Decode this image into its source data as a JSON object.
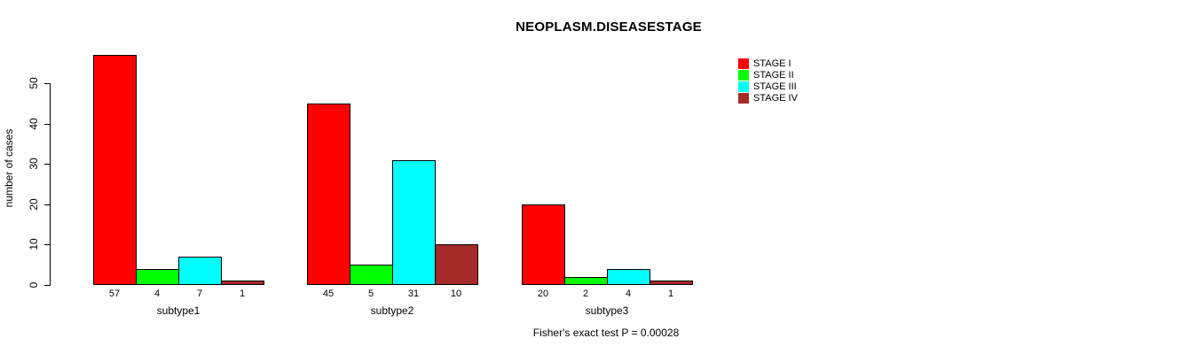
{
  "chart_data": {
    "type": "bar",
    "title": "NEOPLASM.DISEASESTAGE",
    "xlabel": "",
    "ylabel": "number of cases",
    "categories": [
      "subtype1",
      "subtype2",
      "subtype3"
    ],
    "series": [
      {
        "name": "STAGE I",
        "color": "#FF0000",
        "values": [
          57,
          45,
          20
        ]
      },
      {
        "name": "STAGE II",
        "color": "#00FF00",
        "values": [
          4,
          5,
          2
        ]
      },
      {
        "name": "STAGE III",
        "color": "#00FFFF",
        "values": [
          7,
          31,
          4
        ]
      },
      {
        "name": "STAGE IV",
        "color": "#A52A2A",
        "values": [
          1,
          10,
          1
        ]
      }
    ],
    "bar_value_labels": [
      [
        57,
        4,
        7,
        1
      ],
      [
        45,
        5,
        31,
        10
      ],
      [
        20,
        2,
        4,
        1
      ]
    ],
    "yticks": [
      0,
      10,
      20,
      30,
      40,
      50
    ],
    "ylim": [
      0,
      57
    ],
    "grid": false,
    "legend_position": "top-right",
    "bar_border_color": "#000000"
  },
  "footer": {
    "text": "Fisher's exact test P = 0.00028"
  },
  "colors": {
    "background": "#FFFFFF",
    "axis": "#000000",
    "text": "#000000"
  }
}
